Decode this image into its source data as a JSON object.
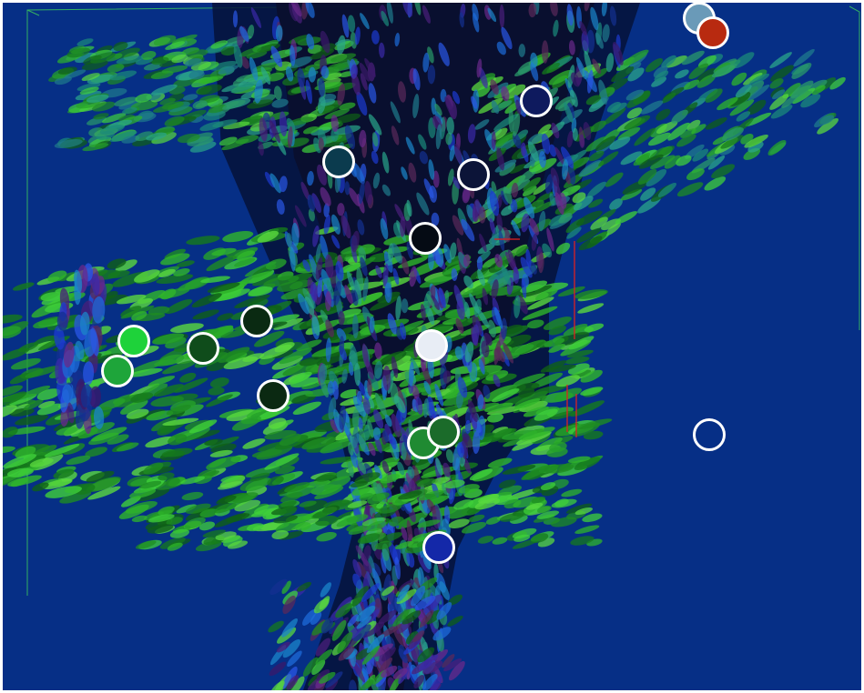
{
  "viewer": {
    "background_color": "#062f86",
    "bounding_box_color": "#3fcf5a",
    "crosshair_color": "#e02020",
    "marker_outline_color": "#ffffff"
  },
  "landmarks": [
    {
      "id": "lm-01",
      "fill": "#6a9ab8"
    },
    {
      "id": "lm-02",
      "fill": "#b82a10"
    },
    {
      "id": "lm-03",
      "fill": "#0e1a5e"
    },
    {
      "id": "lm-04",
      "fill": "#0b3b4e"
    },
    {
      "id": "lm-05",
      "fill": "#0c1438"
    },
    {
      "id": "lm-06",
      "fill": "#050b14"
    },
    {
      "id": "lm-07",
      "fill": "#0a2a12"
    },
    {
      "id": "lm-08",
      "fill": "#1ed23a"
    },
    {
      "id": "lm-09",
      "fill": "#0f4c1b"
    },
    {
      "id": "lm-10",
      "fill": "#1ea53a"
    },
    {
      "id": "lm-11",
      "fill": "#e8edf5"
    },
    {
      "id": "lm-12",
      "fill": "#0b2912"
    },
    {
      "id": "lm-13",
      "fill": "#1f8a32"
    },
    {
      "id": "lm-14",
      "fill": "#1b6b2a"
    },
    {
      "id": "lm-15",
      "fill": "transparent"
    },
    {
      "id": "lm-16",
      "fill": "#1428a8"
    }
  ]
}
